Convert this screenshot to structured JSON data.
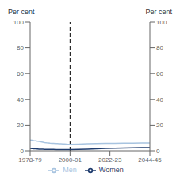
{
  "chart_data": {
    "type": "line",
    "ylabel": "Per cent",
    "y2label": "Per cent",
    "xlim": [
      1978.5,
      2044.5
    ],
    "xticks": [
      {
        "value": 1978.5,
        "label": "1978-79"
      },
      {
        "value": 2000.5,
        "label": "2000-01"
      },
      {
        "value": 2022.5,
        "label": "2022-23"
      },
      {
        "value": 2044.5,
        "label": "2044-45"
      }
    ],
    "ylim": [
      0,
      100
    ],
    "yticks": [
      0,
      20,
      40,
      60,
      80,
      100
    ],
    "y2lim": [
      0,
      100
    ],
    "y2ticks": [
      0,
      20,
      40,
      60,
      80,
      100
    ],
    "grid": false,
    "legend": "bottom",
    "reference_lines": [
      {
        "x": 2000.5,
        "line_style": "dashed",
        "color": "#000000"
      }
    ],
    "series": [
      {
        "name": "Men",
        "color": "#a8c4e0",
        "x": [
          1978.5,
          1979.5,
          1980.5,
          1981.5,
          1982.5,
          1983.5,
          1984.5,
          1985.5,
          1986.5,
          1987.5,
          1988.5,
          1989.5,
          1990.5,
          1991.5,
          1992.5,
          1993.5,
          1994.5,
          1995.5,
          1996.5,
          1997.5,
          1998.5,
          1999.5,
          2000.5,
          2000.5,
          2005,
          2010,
          2015,
          2020,
          2025,
          2030,
          2035,
          2040,
          2044.5
        ],
        "values": [
          8.5,
          8.3,
          8.0,
          7.8,
          7.5,
          7.3,
          7.0,
          6.8,
          6.5,
          6.3,
          6.2,
          6.0,
          5.9,
          5.8,
          5.7,
          5.6,
          5.5,
          5.5,
          5.4,
          5.3,
          5.2,
          5.1,
          5.0,
          5.0,
          5.2,
          5.5,
          5.7,
          5.8,
          5.9,
          6.0,
          6.0,
          6.1,
          6.2
        ]
      },
      {
        "name": "Women",
        "color": "#1f3c6e",
        "x": [
          1978.5,
          1979.5,
          1980.5,
          1981.5,
          1982.5,
          1983.5,
          1984.5,
          1985.5,
          1986.5,
          1987.5,
          1988.5,
          1989.5,
          1990.5,
          1991.5,
          1992.5,
          1993.5,
          1994.5,
          1995.5,
          1996.5,
          1997.5,
          1998.5,
          1999.5,
          2000.5,
          2000.5,
          2005,
          2010,
          2015,
          2020,
          2025,
          2030,
          2035,
          2040,
          2044.5
        ],
        "values": [
          1.8,
          1.7,
          1.6,
          1.5,
          1.4,
          1.3,
          1.2,
          1.2,
          1.1,
          1.1,
          1.0,
          1.0,
          1.0,
          1.0,
          0.9,
          0.9,
          0.9,
          0.9,
          0.9,
          0.9,
          0.9,
          0.9,
          0.9,
          0.9,
          1.0,
          1.2,
          1.5,
          1.8,
          2.0,
          2.2,
          2.3,
          2.4,
          2.5
        ]
      }
    ]
  }
}
